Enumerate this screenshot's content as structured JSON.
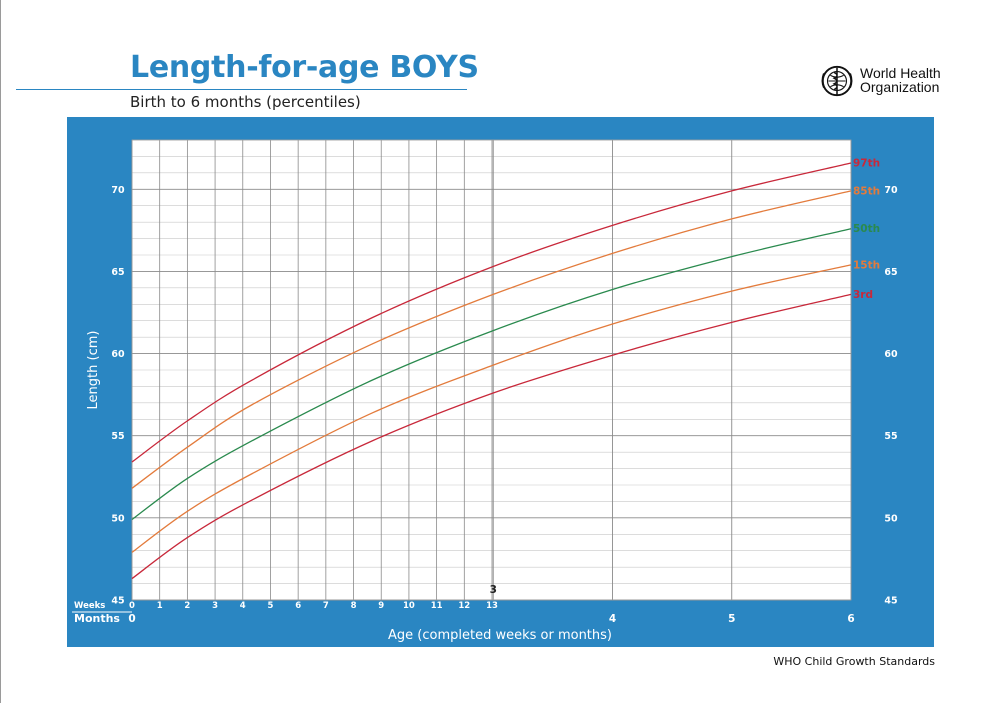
{
  "header": {
    "title": "Length-for-age BOYS",
    "subtitle": "Birth to 6 months (percentiles)",
    "organization_line1": "World Health",
    "organization_line2": "Organization",
    "logo_icon": "who-emblem-icon"
  },
  "footer": {
    "source": "WHO Child Growth Standards"
  },
  "colors": {
    "frame": "#2a86c2",
    "grid_minor": "#c8c8c8",
    "grid_major": "#8a8a8a",
    "p3": "#c8283a",
    "p15": "#e37b3c",
    "p50": "#2a8a4e",
    "p85": "#e37b3c",
    "p97": "#c8283a"
  },
  "chart_data": {
    "type": "line",
    "title": "Length-for-age BOYS",
    "subtitle": "Birth to 6 months (percentiles)",
    "xlabel": "Age (completed weeks or months)",
    "ylabel": "Length (cm)",
    "x_unit": "months",
    "xlim": [
      0,
      6
    ],
    "ylim": [
      45,
      73
    ],
    "y_ticks": [
      45,
      50,
      55,
      60,
      65,
      70
    ],
    "weeks_row_label": "Weeks",
    "months_row_label": "Months",
    "week_ticks": [
      "0",
      "1",
      "2",
      "3",
      "4",
      "5",
      "6",
      "7",
      "8",
      "9",
      "10",
      "11",
      "12",
      "13"
    ],
    "month_ticks": [
      {
        "value": 3,
        "label": "3"
      },
      {
        "value": 4,
        "label": "4"
      },
      {
        "value": 5,
        "label": "5"
      },
      {
        "value": 6,
        "label": "6"
      }
    ],
    "month_zero_label": "0",
    "grid": true,
    "legend": "right-end labels",
    "series": [
      {
        "name": "97th",
        "color_key": "p97",
        "x": [
          0,
          0.4602,
          1,
          2,
          3,
          4,
          5,
          6
        ],
        "y": [
          53.4,
          55.9,
          58.4,
          62.2,
          65.3,
          67.8,
          69.9,
          71.6
        ]
      },
      {
        "name": "85th",
        "color_key": "p85",
        "x": [
          0,
          0.4602,
          1,
          2,
          3,
          4,
          5,
          6
        ],
        "y": [
          51.8,
          54.3,
          56.9,
          60.6,
          63.6,
          66.1,
          68.2,
          69.9
        ]
      },
      {
        "name": "50th",
        "color_key": "p50",
        "x": [
          0,
          0.4602,
          1,
          2,
          3,
          4,
          5,
          6
        ],
        "y": [
          49.9,
          52.4,
          54.7,
          58.4,
          61.4,
          63.9,
          65.9,
          67.6
        ]
      },
      {
        "name": "15th",
        "color_key": "p15",
        "x": [
          0,
          0.4602,
          1,
          2,
          3,
          4,
          5,
          6
        ],
        "y": [
          47.9,
          50.4,
          52.7,
          56.4,
          59.3,
          61.8,
          63.8,
          65.4
        ]
      },
      {
        "name": "3rd",
        "color_key": "p3",
        "x": [
          0,
          0.4602,
          1,
          2,
          3,
          4,
          5,
          6
        ],
        "y": [
          46.3,
          48.8,
          51.1,
          54.7,
          57.6,
          59.9,
          61.9,
          63.6
        ]
      }
    ]
  }
}
